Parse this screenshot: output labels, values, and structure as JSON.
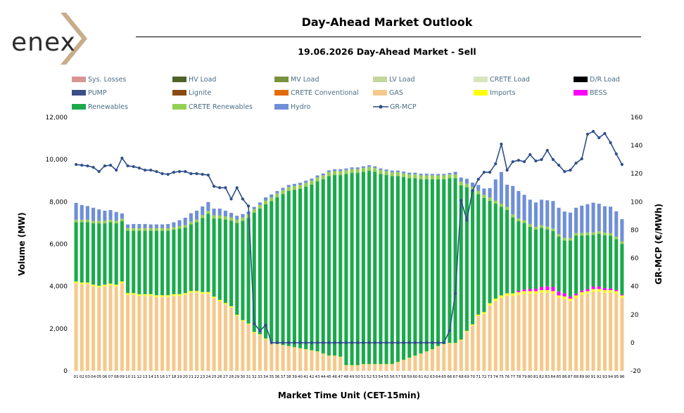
{
  "brand": {
    "logo_text": "enex"
  },
  "header": {
    "title": "Day-Ahead Market Outlook",
    "subtitle": "19.06.2026  Day-Ahead Market - Sell"
  },
  "chart_data": {
    "type": "bar",
    "stacked": true,
    "title": "Day-Ahead Market Outlook",
    "subtitle": "19.06.2026  Day-Ahead Market - Sell",
    "xlabel": "Market Time Unit (CET-15min)",
    "ylabel": "Volume (MW)",
    "y2label": "GR-MCP (€/MWh)",
    "ylim": [
      0,
      12000
    ],
    "y2lim": [
      -20,
      160
    ],
    "yticks": [
      "0",
      "2,000",
      "4,000",
      "6,000",
      "8,000",
      "10,000",
      "12,000"
    ],
    "y2ticks": [
      "-20",
      "0",
      "20",
      "40",
      "60",
      "80",
      "100",
      "120",
      "140",
      "160"
    ],
    "grid": false,
    "legend_position": "top",
    "legend": [
      {
        "name": "Sys. Losses",
        "color": "#d99594",
        "kind": "bar"
      },
      {
        "name": "HV Load",
        "color": "#4f6228",
        "kind": "bar"
      },
      {
        "name": "MV Load",
        "color": "#77933c",
        "kind": "bar"
      },
      {
        "name": "LV Load",
        "color": "#c3d69b",
        "kind": "bar"
      },
      {
        "name": "CRETE Load",
        "color": "#d7e4bd",
        "kind": "bar"
      },
      {
        "name": "D/R Load",
        "color": "#000000",
        "kind": "bar"
      },
      {
        "name": "PUMP",
        "color": "#3b4e87",
        "kind": "bar"
      },
      {
        "name": "Lignite",
        "color": "#8a4a10",
        "kind": "bar"
      },
      {
        "name": "CRETE Conventional",
        "color": "#e36c09",
        "kind": "bar"
      },
      {
        "name": "GAS",
        "color": "#f5c98b",
        "kind": "bar"
      },
      {
        "name": "Imports",
        "color": "#ffff00",
        "kind": "bar"
      },
      {
        "name": "BESS",
        "color": "#ff00ff",
        "kind": "bar"
      },
      {
        "name": "Renewables",
        "color": "#1aaa4b",
        "kind": "bar"
      },
      {
        "name": "CRETE Renewables",
        "color": "#92d050",
        "kind": "bar"
      },
      {
        "name": "Hydro",
        "color": "#6f8fd6",
        "kind": "bar"
      },
      {
        "name": "GR-MCP",
        "color": "#2e4f8a",
        "kind": "line"
      }
    ],
    "x": [
      "01",
      "02",
      "03",
      "04",
      "05",
      "06",
      "07",
      "08",
      "09",
      "10",
      "11",
      "12",
      "13",
      "14",
      "15",
      "16",
      "17",
      "18",
      "19",
      "20",
      "21",
      "22",
      "23",
      "24",
      "25",
      "26",
      "27",
      "28",
      "29",
      "30",
      "31",
      "32",
      "33",
      "34",
      "35",
      "36",
      "37",
      "38",
      "39",
      "40",
      "41",
      "42",
      "43",
      "44",
      "45",
      "46",
      "47",
      "48",
      "49",
      "50",
      "51",
      "52",
      "53",
      "54",
      "55",
      "56",
      "57",
      "58",
      "59",
      "60",
      "61",
      "62",
      "63",
      "64",
      "65",
      "66",
      "67",
      "68",
      "69",
      "70",
      "71",
      "72",
      "73",
      "74",
      "75",
      "76",
      "77",
      "78",
      "79",
      "80",
      "81",
      "82",
      "83",
      "84",
      "85",
      "86",
      "87",
      "88",
      "89",
      "90",
      "91",
      "92",
      "93",
      "94",
      "95",
      "96"
    ],
    "series": [
      {
        "name": "GAS",
        "color": "#f5c98b",
        "values": [
          4150,
          4100,
          4100,
          4000,
          3950,
          4000,
          4050,
          4000,
          4150,
          3600,
          3600,
          3550,
          3550,
          3550,
          3500,
          3500,
          3500,
          3550,
          3550,
          3600,
          3700,
          3700,
          3650,
          3650,
          3450,
          3300,
          3150,
          3000,
          2600,
          2350,
          2200,
          1800,
          1700,
          1500,
          1350,
          1250,
          1200,
          1150,
          1100,
          1050,
          1000,
          950,
          900,
          800,
          700,
          700,
          650,
          250,
          250,
          250,
          300,
          300,
          300,
          300,
          300,
          300,
          400,
          500,
          600,
          700,
          800,
          900,
          1000,
          1150,
          1250,
          1300,
          1300,
          1450,
          1850,
          2150,
          2600,
          2700,
          3100,
          3300,
          3450,
          3550,
          3550,
          3600,
          3650,
          3650,
          3650,
          3700,
          3700,
          3650,
          3450,
          3400,
          3300,
          3450,
          3600,
          3650,
          3750,
          3750,
          3700,
          3700,
          3650,
          3450
        ]
      },
      {
        "name": "Imports",
        "color": "#ffff00",
        "values": [
          80,
          80,
          80,
          80,
          80,
          80,
          80,
          80,
          80,
          80,
          80,
          80,
          80,
          80,
          80,
          80,
          80,
          80,
          80,
          80,
          80,
          80,
          80,
          80,
          60,
          60,
          60,
          60,
          50,
          50,
          40,
          40,
          30,
          30,
          30,
          20,
          20,
          20,
          20,
          20,
          20,
          20,
          20,
          20,
          20,
          20,
          20,
          20,
          20,
          20,
          20,
          20,
          20,
          20,
          20,
          20,
          20,
          20,
          20,
          20,
          20,
          20,
          20,
          20,
          20,
          20,
          20,
          30,
          40,
          50,
          60,
          80,
          100,
          120,
          120,
          120,
          120,
          120,
          120,
          120,
          120,
          120,
          120,
          120,
          120,
          120,
          120,
          120,
          120,
          120,
          120,
          120,
          120,
          120,
          120,
          120
        ]
      },
      {
        "name": "BESS",
        "color": "#ff00ff",
        "values": [
          0,
          0,
          0,
          0,
          0,
          0,
          0,
          0,
          0,
          0,
          0,
          0,
          0,
          0,
          0,
          0,
          0,
          0,
          0,
          0,
          0,
          0,
          0,
          0,
          0,
          0,
          0,
          0,
          0,
          0,
          0,
          0,
          0,
          0,
          0,
          0,
          0,
          0,
          0,
          0,
          0,
          0,
          0,
          0,
          0,
          0,
          0,
          0,
          0,
          0,
          0,
          0,
          0,
          0,
          0,
          0,
          0,
          0,
          0,
          0,
          0,
          0,
          0,
          0,
          0,
          0,
          0,
          0,
          0,
          0,
          0,
          0,
          0,
          0,
          0,
          0,
          0,
          60,
          80,
          100,
          120,
          150,
          180,
          200,
          180,
          150,
          100,
          80,
          80,
          100,
          120,
          120,
          100,
          80,
          60,
          40
        ]
      },
      {
        "name": "Renewables",
        "color": "#1aaa4b",
        "values": [
          2800,
          2850,
          2850,
          2900,
          2950,
          2900,
          2900,
          2900,
          2850,
          2950,
          2950,
          3000,
          3000,
          3000,
          3050,
          3050,
          3050,
          3050,
          3100,
          3100,
          3150,
          3250,
          3500,
          3700,
          3700,
          3850,
          3950,
          4050,
          4350,
          4700,
          5000,
          5650,
          5950,
          6350,
          6650,
          6950,
          7150,
          7350,
          7450,
          7550,
          7700,
          7850,
          8050,
          8250,
          8500,
          8550,
          8600,
          9050,
          9100,
          9100,
          9100,
          9150,
          9100,
          9000,
          8950,
          8900,
          8800,
          8650,
          8500,
          8400,
          8250,
          8150,
          8050,
          7900,
          7800,
          7800,
          7800,
          7300,
          6800,
          6350,
          5700,
          5400,
          4850,
          4500,
          4200,
          3950,
          3600,
          3300,
          3150,
          2950,
          2800,
          2800,
          2700,
          2650,
          2600,
          2500,
          2650,
          2750,
          2600,
          2550,
          2450,
          2500,
          2500,
          2500,
          2400,
          2400
        ]
      },
      {
        "name": "CRETE Renewables",
        "color": "#92d050",
        "values": [
          120,
          120,
          120,
          120,
          120,
          120,
          120,
          120,
          120,
          120,
          120,
          120,
          120,
          120,
          120,
          120,
          120,
          120,
          120,
          120,
          130,
          130,
          140,
          140,
          150,
          150,
          150,
          150,
          160,
          160,
          170,
          170,
          170,
          180,
          180,
          180,
          180,
          180,
          180,
          180,
          180,
          180,
          180,
          180,
          180,
          180,
          180,
          180,
          180,
          180,
          180,
          180,
          180,
          180,
          180,
          180,
          180,
          180,
          180,
          180,
          180,
          180,
          180,
          180,
          180,
          180,
          170,
          170,
          160,
          160,
          160,
          150,
          150,
          140,
          140,
          140,
          130,
          130,
          130,
          130,
          130,
          130,
          120,
          120,
          120,
          120,
          120,
          120,
          120,
          120,
          120,
          120,
          120,
          120,
          120,
          120
        ]
      },
      {
        "name": "Hydro",
        "color": "#6f8fd6",
        "values": [
          800,
          700,
          650,
          620,
          540,
          480,
          460,
          420,
          250,
          180,
          200,
          200,
          200,
          180,
          180,
          180,
          200,
          230,
          280,
          350,
          400,
          420,
          410,
          420,
          320,
          320,
          270,
          220,
          180,
          160,
          130,
          100,
          120,
          150,
          140,
          110,
          110,
          100,
          100,
          100,
          100,
          100,
          100,
          90,
          90,
          90,
          90,
          80,
          80,
          80,
          80,
          80,
          80,
          80,
          80,
          80,
          80,
          80,
          80,
          80,
          80,
          80,
          70,
          70,
          70,
          70,
          130,
          200,
          240,
          200,
          280,
          300,
          450,
          1000,
          1500,
          1050,
          1350,
          1300,
          1200,
          1150,
          1150,
          1200,
          1250,
          1300,
          1250,
          1250,
          1200,
          1200,
          1300,
          1350,
          1400,
          1300,
          1250,
          1250,
          1200,
          1050
        ]
      }
    ],
    "line_series": {
      "name": "GR-MCP",
      "color": "#2e4f8a",
      "axis": "right",
      "values": [
        126.5,
        126,
        125.5,
        124.5,
        121.5,
        125.5,
        126,
        122.5,
        131,
        125.5,
        125,
        124,
        122.5,
        122.5,
        121.5,
        120,
        119.5,
        121,
        121.5,
        121.5,
        120,
        120,
        119.5,
        119,
        111,
        110,
        110,
        102,
        110,
        102,
        97,
        13.5,
        8.5,
        12.5,
        0,
        0,
        0,
        0,
        0,
        0,
        0,
        0,
        0,
        0,
        0,
        0,
        0,
        0,
        0,
        0,
        0,
        0,
        0,
        0,
        0,
        0,
        0,
        0,
        0,
        0,
        0,
        0,
        0,
        0,
        0,
        8.5,
        35,
        101,
        87,
        108,
        116,
        121,
        121,
        127,
        141,
        122.5,
        128.5,
        129.5,
        128.5,
        133.5,
        129,
        130,
        136.5,
        130,
        126,
        121.5,
        122.5,
        127.5,
        130.5,
        148,
        150,
        145.5,
        148.5,
        142,
        134,
        126.5
      ]
    }
  }
}
